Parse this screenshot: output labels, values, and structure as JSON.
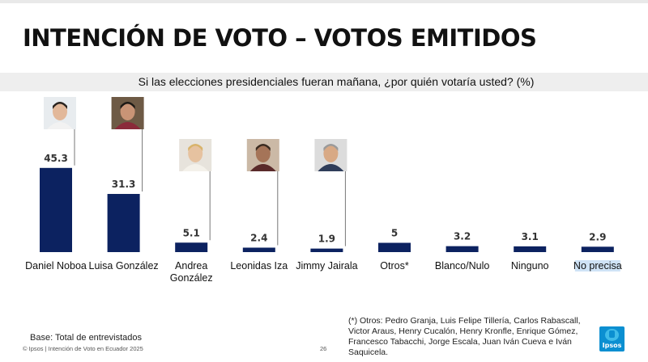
{
  "slide": {
    "title": "INTENCIÓN DE VOTO – VOTOS EMITIDOS",
    "question": "Si las elecciones presidenciales fueran mañana, ¿por quién votaría usted? (%)",
    "footnote": "(*) Otros: Pedro Granja, Luis Felipe Tillería, Carlos Rabascall, Victor Araus, Henry Cucalón,  Henry Kronfle, Enrique Gómez, Francesco Tabacchi, Jorge Escala, Juan Iván Cueva e Iván Saquicela.",
    "base": "Base: Total de entrevistados",
    "copyright": "© Ipsos | Intención de Voto en Ecuador 2025",
    "page_number": "26",
    "logo_text": "Ipsos"
  },
  "colors": {
    "bar": "#0c2260",
    "highlight": "#cfe3f6",
    "logo": "#0b8fd1"
  },
  "chart_data": {
    "type": "bar",
    "categories": [
      "Daniel Noboa",
      "Luisa González",
      "Andrea González",
      "Leonidas Iza",
      "Jimmy Jairala",
      "Otros*",
      "Blanco/Nulo",
      "Ninguno",
      "No precisa"
    ],
    "values": [
      45.3,
      31.3,
      5.1,
      2.4,
      1.9,
      5,
      3.2,
      3.1,
      2.9
    ],
    "value_labels": [
      "45.3",
      "31.3",
      "5.1",
      "2.4",
      "1.9",
      "5",
      "3.2",
      "3.1",
      "2.9"
    ],
    "photos": [
      "person-photo-icon",
      "person-photo-icon",
      "person-photo-icon",
      "person-photo-icon",
      "person-photo-icon",
      null,
      null,
      null,
      null
    ],
    "highlighted_category": "No precisa",
    "title": "",
    "xlabel": "",
    "ylabel": "",
    "ylim": [
      0,
      50
    ],
    "grid": false,
    "legend": "none"
  }
}
